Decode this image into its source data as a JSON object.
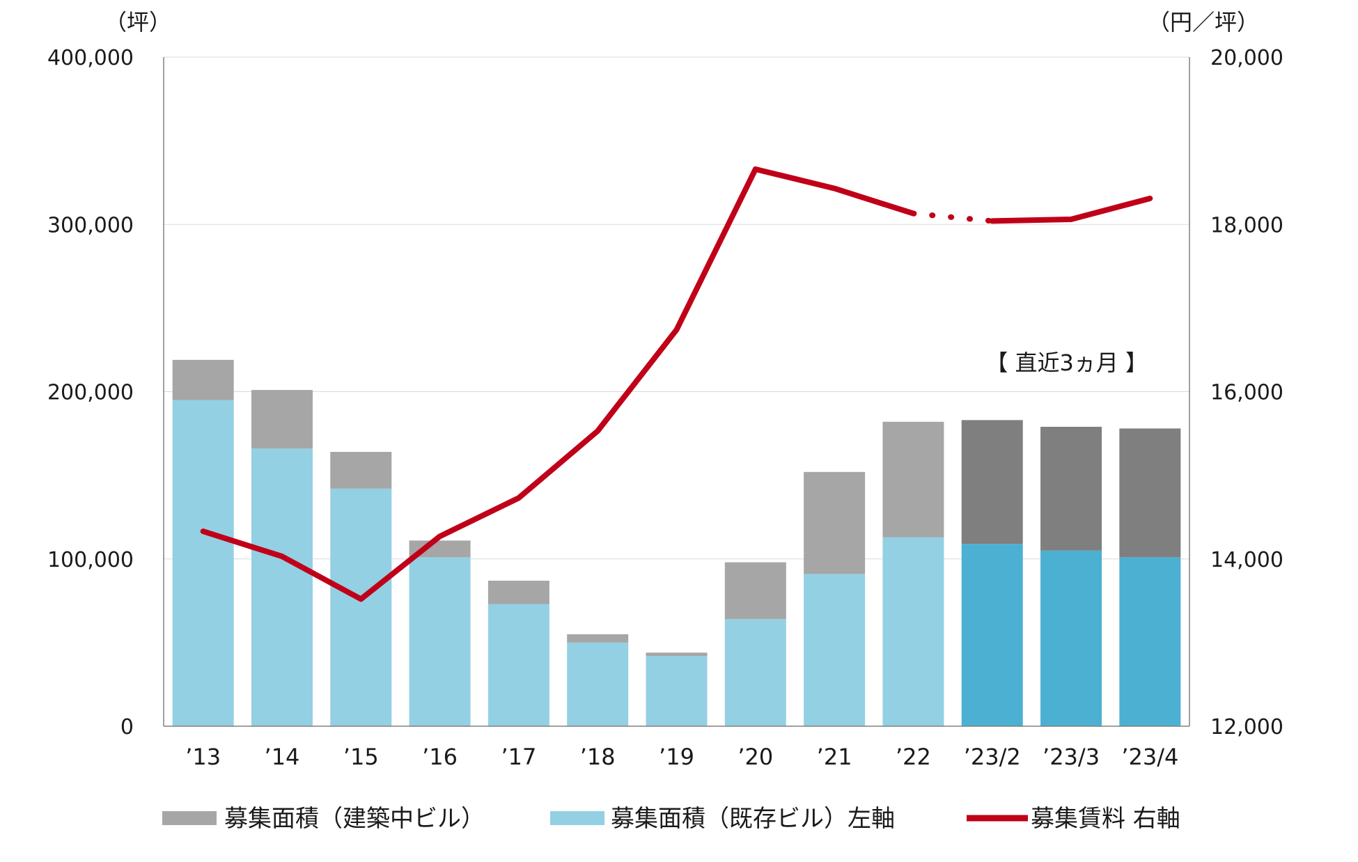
{
  "chart_data": {
    "type": "bar",
    "categories": [
      "’13",
      "’14",
      "’15",
      "’16",
      "’17",
      "’18",
      "’19",
      "’20",
      "’21",
      "’22",
      "’23/2",
      "’23/3",
      "’23/4"
    ],
    "series": [
      {
        "name": "募集面積（既存ビル）左軸",
        "type": "bar",
        "axis": "left",
        "values": [
          195000,
          166000,
          142000,
          101000,
          73000,
          50000,
          42000,
          64000,
          91000,
          113000,
          109000,
          105000,
          101000
        ]
      },
      {
        "name": "募集面積（建築中ビル）",
        "type": "bar",
        "axis": "left",
        "values": [
          24000,
          35000,
          22000,
          10000,
          14000,
          5000,
          2000,
          34000,
          61000,
          69000,
          74000,
          74000,
          77000
        ]
      },
      {
        "name": "募集賃料 右軸",
        "type": "line",
        "axis": "right",
        "values": [
          14330,
          14030,
          13520,
          14270,
          14730,
          15530,
          16740,
          18660,
          18430,
          18130,
          18040,
          18060,
          18310
        ]
      }
    ],
    "left_axis": {
      "unit": "（坪）",
      "ylim": [
        0,
        400000
      ],
      "ticks": [
        "0",
        "100,000",
        "200,000",
        "300,000",
        "400,000"
      ]
    },
    "right_axis": {
      "unit": "（円／坪）",
      "ylim": [
        12000,
        20000
      ],
      "ticks": [
        "12,000",
        "14,000",
        "16,000",
        "18,000",
        "20,000"
      ]
    },
    "annotation": "【 直近3ヵ月 】",
    "grid": true,
    "legend_position": "bottom",
    "colors": {
      "existing": "#93d0e3",
      "existing_recent": "#4cb0d3",
      "construction": "#a6a6a6",
      "construction_recent": "#7f7f7f",
      "rent_line": "#c00018",
      "grid": "#d9d9d9",
      "axis": "#808080"
    }
  }
}
